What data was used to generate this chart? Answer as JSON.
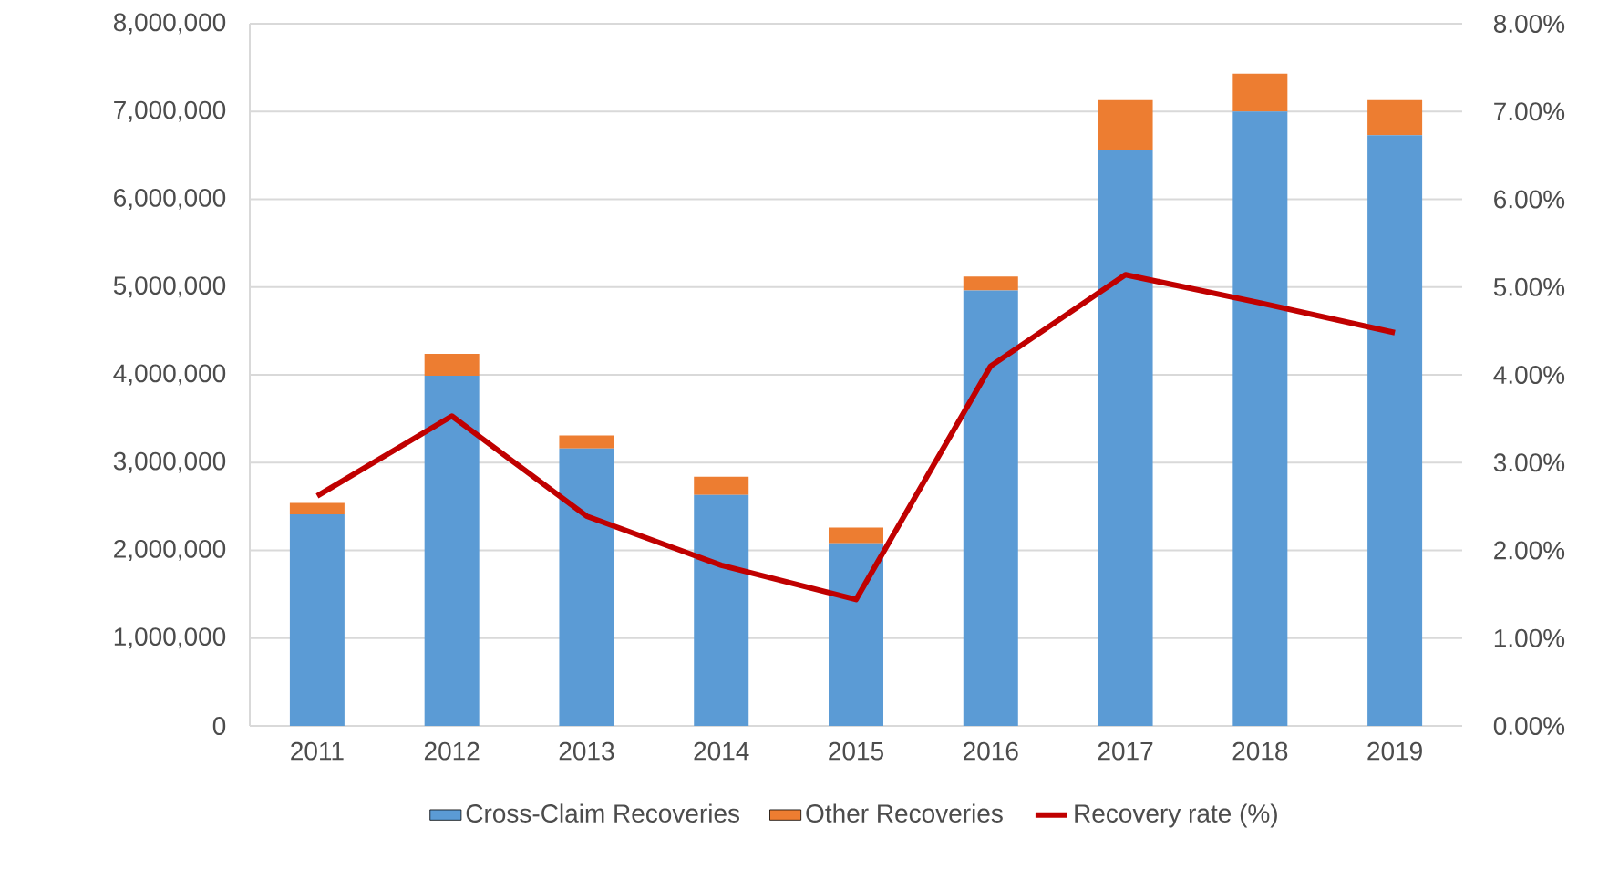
{
  "chart_data": {
    "type": "bar",
    "stacked": true,
    "categories": [
      "2011",
      "2012",
      "2013",
      "2014",
      "2015",
      "2016",
      "2017",
      "2018",
      "2019"
    ],
    "series": [
      {
        "name": "Cross-Claim Recoveries",
        "color": "#5b9bd5",
        "values": [
          2410000,
          3990000,
          3160000,
          2630000,
          2080000,
          4960000,
          6560000,
          7000000,
          6730000
        ]
      },
      {
        "name": "Other Recoveries",
        "color": "#ed7d31",
        "values": [
          130000,
          250000,
          150000,
          210000,
          180000,
          160000,
          570000,
          430000,
          400000
        ]
      },
      {
        "name": "Recovery rate (%)",
        "color": "#c00000",
        "type": "line",
        "axis": "y2",
        "values": [
          2.62,
          3.53,
          2.39,
          1.83,
          1.44,
          4.1,
          5.14,
          4.82,
          4.48
        ]
      }
    ],
    "ylim": [
      0,
      8000000
    ],
    "yticks": [
      0,
      {
        "value": 1000000,
        "label": "1,000,000"
      },
      {
        "value": 2000000,
        "label": "2,000,000"
      },
      {
        "value": 3000000,
        "label": "3,000,000"
      },
      {
        "value": 4000000,
        "label": "4,000,000"
      },
      {
        "value": 5000000,
        "label": "5,000,000"
      },
      {
        "value": 6000000,
        "label": "6,000,000"
      },
      {
        "value": 7000000,
        "label": "7,000,000"
      },
      {
        "value": 8000000,
        "label": "8,000,000"
      }
    ],
    "y2lim": [
      0,
      8
    ],
    "y2ticks": [
      {
        "value": 0,
        "label": "0.00%"
      },
      {
        "value": 1,
        "label": "1.00%"
      },
      {
        "value": 2,
        "label": "2.00%"
      },
      {
        "value": 3,
        "label": "3.00%"
      },
      {
        "value": 4,
        "label": "4.00%"
      },
      {
        "value": 5,
        "label": "5.00%"
      },
      {
        "value": 6,
        "label": "6.00%"
      },
      {
        "value": 7,
        "label": "7.00%"
      },
      {
        "value": 8,
        "label": "8.00%"
      }
    ],
    "grid": "y",
    "legend": "bottom"
  }
}
